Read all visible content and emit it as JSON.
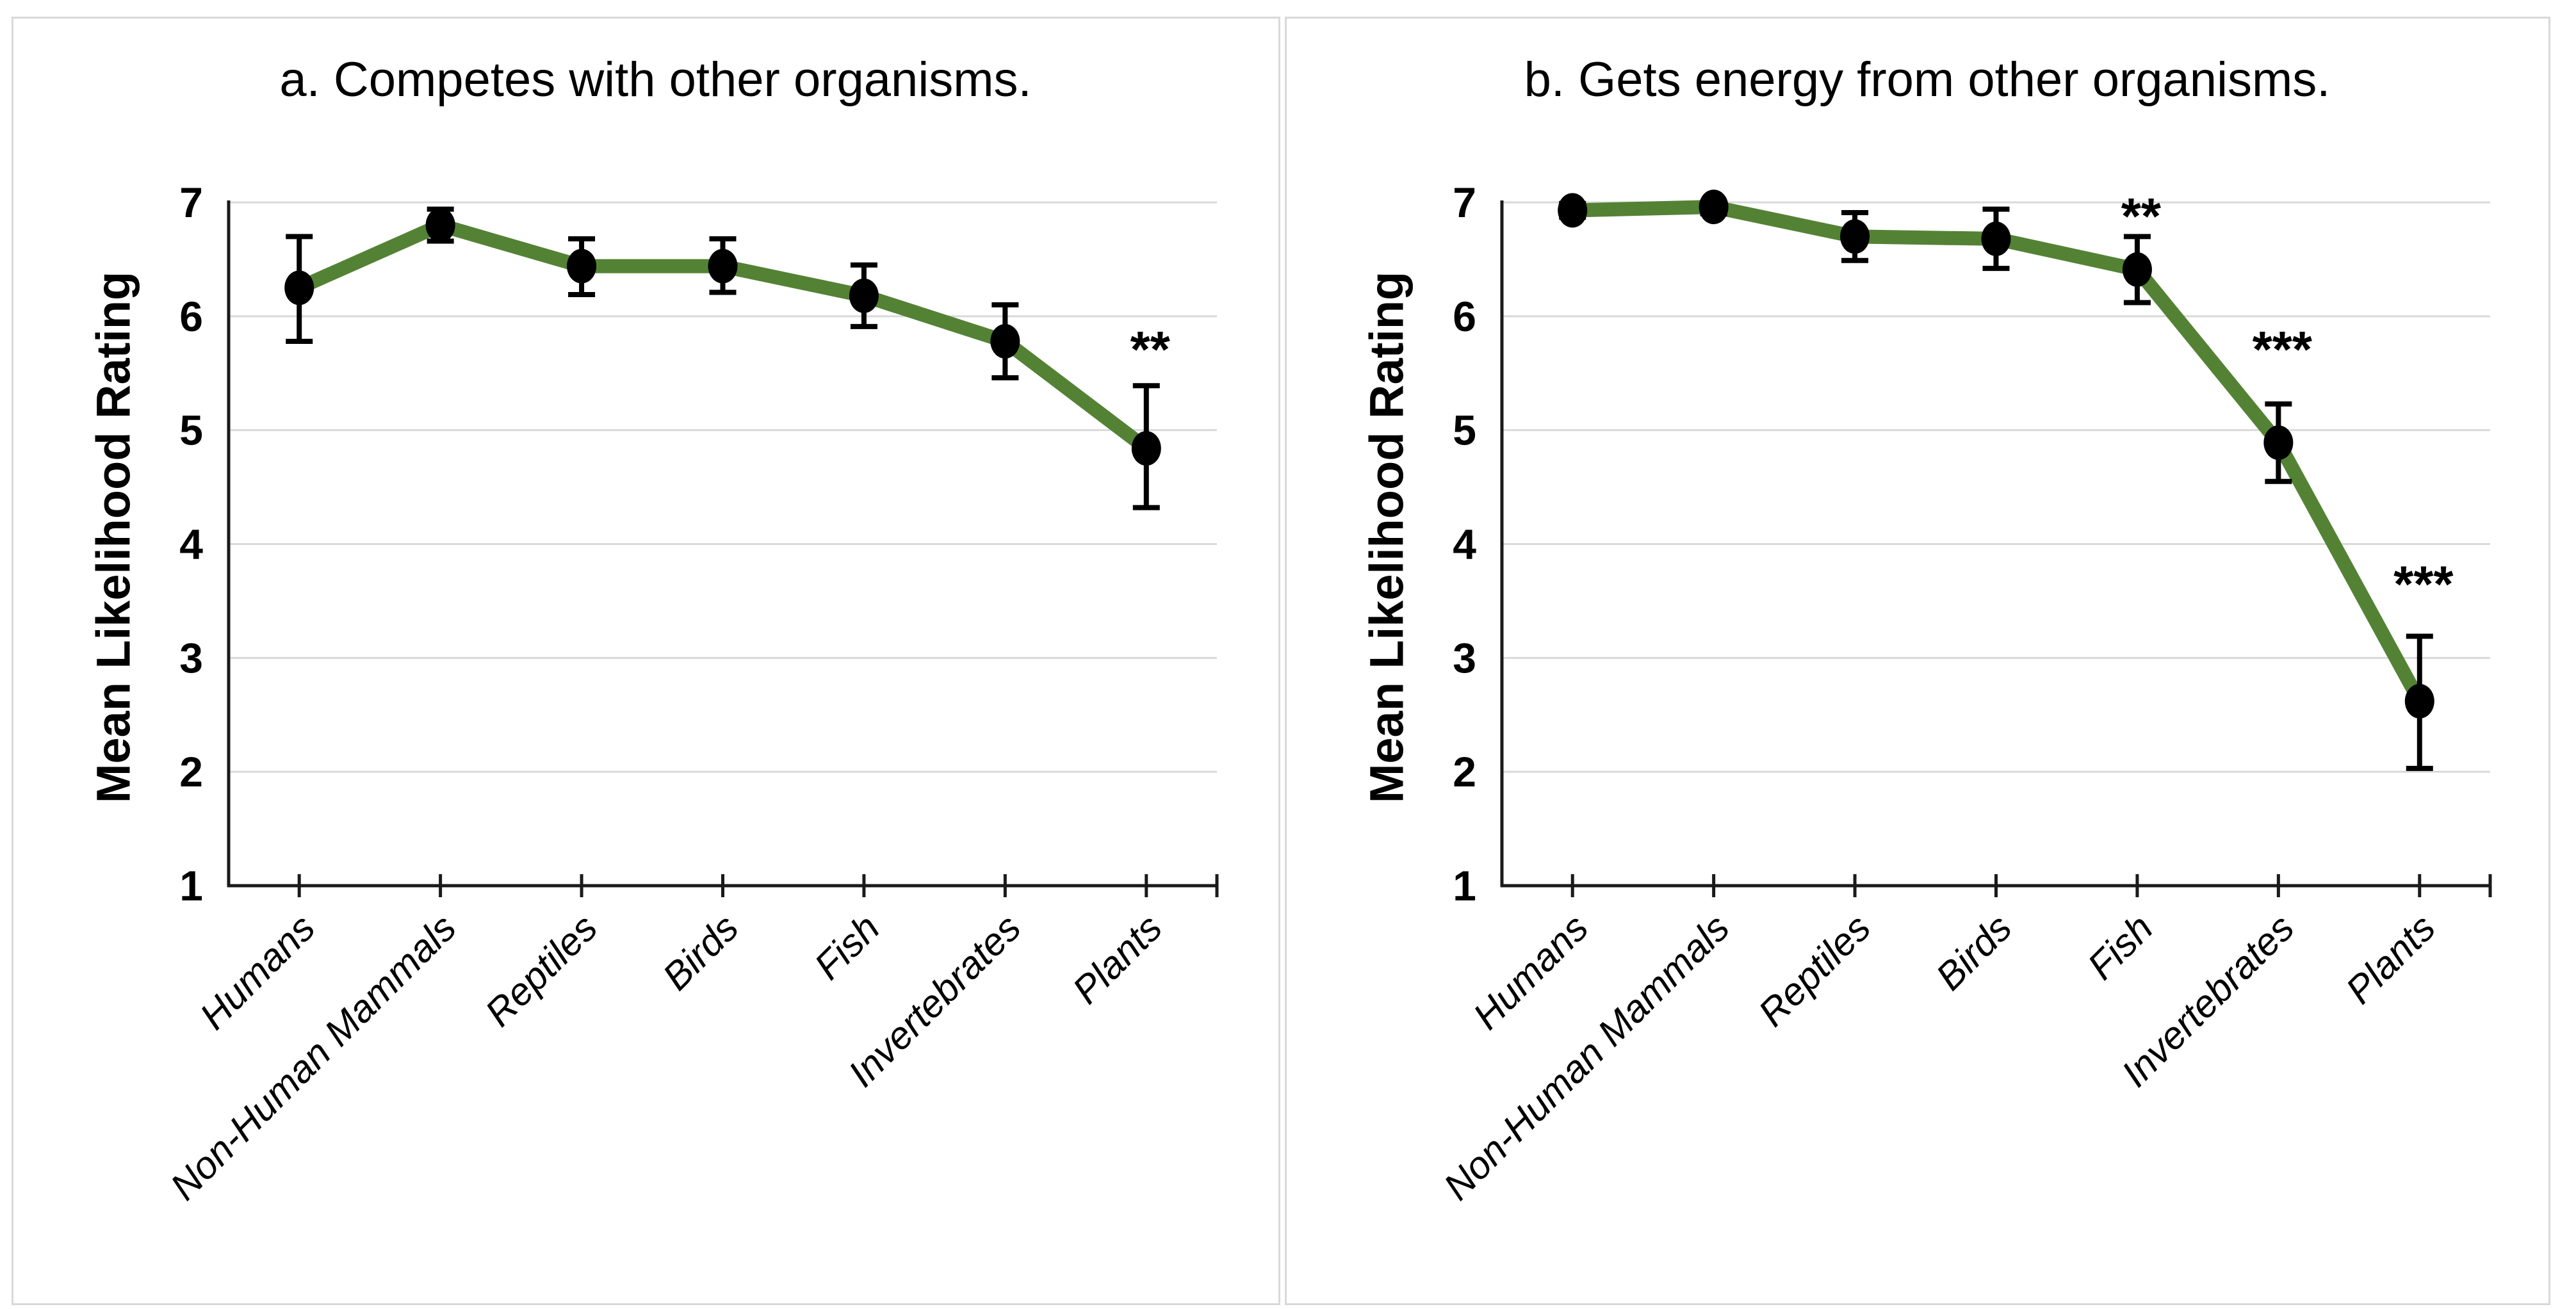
{
  "page": {
    "background": "#ffffff",
    "panel_border_color": "#d9d9d9",
    "gridline_color": "#d9d9d9",
    "axis_color": "#1a1a1a",
    "text_color": "#000000"
  },
  "chart_data": [
    {
      "type": "line",
      "panel": "a",
      "title": "a. Competes with other organisms.",
      "ylabel": "Mean Likelihood Rating",
      "xlabel": "",
      "categories": [
        "Humans",
        "Non-Human Mammals",
        "Reptiles",
        "Birds",
        "Fish",
        "Invertebrates",
        "Plants"
      ],
      "ylim": [
        1,
        7
      ],
      "yticks": [
        1,
        2,
        3,
        4,
        5,
        6,
        7
      ],
      "grid": true,
      "legend_position": "none",
      "line_color": "#548235",
      "marker_color": "#000000",
      "marker_shape": "filled-circle",
      "error_bar_color": "#000000",
      "series": [
        {
          "name": "Mean Likelihood Rating",
          "values": [
            6.25,
            6.8,
            6.44,
            6.44,
            6.18,
            5.78,
            4.84
          ],
          "error_low": [
            5.78,
            6.66,
            6.19,
            6.21,
            5.91,
            5.46,
            4.32
          ],
          "error_high": [
            6.7,
            6.94,
            6.68,
            6.68,
            6.45,
            6.1,
            5.39
          ]
        }
      ],
      "significance": [
        {
          "category": "Plants",
          "label": "**",
          "y": 5.78
        }
      ]
    },
    {
      "type": "line",
      "panel": "b",
      "title": "b. Gets energy from other organisms.",
      "ylabel": "Mean Likelihood Rating",
      "xlabel": "",
      "categories": [
        "Humans",
        "Non-Human Mammals",
        "Reptiles",
        "Birds",
        "Fish",
        "Invertebrates",
        "Plants"
      ],
      "ylim": [
        1,
        7
      ],
      "yticks": [
        1,
        2,
        3,
        4,
        5,
        6,
        7
      ],
      "grid": true,
      "legend_position": "none",
      "line_color": "#548235",
      "marker_color": "#000000",
      "marker_shape": "filled-circle",
      "error_bar_color": "#000000",
      "series": [
        {
          "name": "Mean Likelihood Rating",
          "values": [
            6.93,
            6.96,
            6.7,
            6.68,
            6.41,
            4.89,
            2.62
          ],
          "error_low": [
            6.87,
            6.9,
            6.49,
            6.42,
            6.12,
            4.55,
            2.03
          ],
          "error_high": [
            6.99,
            7.0,
            6.91,
            6.94,
            6.7,
            5.23,
            3.19
          ]
        }
      ],
      "significance": [
        {
          "category": "Fish",
          "label": "**",
          "y": 6.95
        },
        {
          "category": "Invertebrates",
          "label": "***",
          "y": 5.78
        },
        {
          "category": "Plants",
          "label": "***",
          "y": 3.72
        }
      ]
    }
  ]
}
